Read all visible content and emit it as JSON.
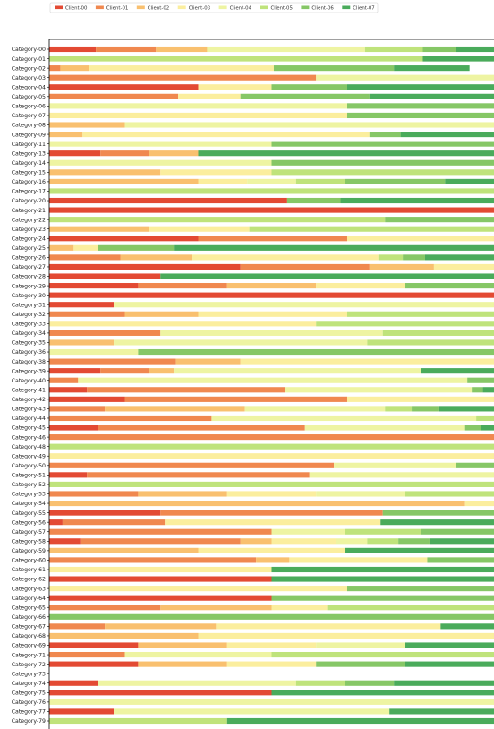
{
  "chart_data": {
    "type": "bar",
    "orientation": "horizontal",
    "stacked": true,
    "xlim": [
      0,
      1
    ],
    "grid": false,
    "legend_position": "top",
    "colors": [
      "#e34a33",
      "#f0884f",
      "#f9c06f",
      "#fbee9e",
      "#eef4a2",
      "#bfe37b",
      "#86c766",
      "#4aab5b"
    ],
    "legend": [
      "Client-00",
      "Client-01",
      "Client-02",
      "Client-03",
      "Client-04",
      "Client-05",
      "Client-06",
      "Client-07"
    ],
    "categories": [
      "Category-00",
      "Category-01",
      "Category-02",
      "Category-03",
      "Category-04",
      "Category-05",
      "Category-06",
      "Category-07",
      "Category-08",
      "Category-09",
      "Category-11",
      "Category-13",
      "Category-14",
      "Category-15",
      "Category-16",
      "Category-17",
      "Category-20",
      "Category-21",
      "Category-22",
      "Category-23",
      "Category-24",
      "Category-25",
      "Category-26",
      "Category-27",
      "Category-28",
      "Category-29",
      "Category-30",
      "Category-31",
      "Category-32",
      "Category-33",
      "Category-34",
      "Category-35",
      "Category-36",
      "Category-38",
      "Category-39",
      "Category-40",
      "Category-41",
      "Category-42",
      "Category-43",
      "Category-44",
      "Category-45",
      "Category-46",
      "Category-48",
      "Category-49",
      "Category-50",
      "Category-51",
      "Category-52",
      "Category-53",
      "Category-54",
      "Category-55",
      "Category-56",
      "Category-57",
      "Category-58",
      "Category-59",
      "Category-60",
      "Category-61",
      "Category-62",
      "Category-63",
      "Category-64",
      "Category-65",
      "Category-66",
      "Category-67",
      "Category-68",
      "Category-69",
      "Category-71",
      "Category-72",
      "Category-73",
      "Category-74",
      "Category-75",
      "Category-76",
      "Category-77",
      "Category-79"
    ],
    "values": [
      [
        0.105,
        0.135,
        0.115,
        0.0,
        0.355,
        0.13,
        0.075,
        0.085
      ],
      [
        0.0,
        0.0,
        0.0,
        0.0,
        0.0,
        0.84,
        0.0,
        0.16
      ],
      [
        0.0,
        0.025,
        0.065,
        0.415,
        0.0,
        0.0,
        0.27,
        0.17
      ],
      [
        0.0,
        0.6,
        0.0,
        0.0,
        0.4,
        0.0,
        0.0,
        0.0
      ],
      [
        0.335,
        0.0,
        0.0,
        0.165,
        0.0,
        0.0,
        0.17,
        0.33
      ],
      [
        0.0,
        0.29,
        0.0,
        0.14,
        0.0,
        0.0,
        0.29,
        0.28
      ],
      [
        0.0,
        0.0,
        0.0,
        0.0,
        0.67,
        0.0,
        0.33,
        0.0
      ],
      [
        0.0,
        0.0,
        0.0,
        0.67,
        0.0,
        0.0,
        0.33,
        0.0
      ],
      [
        0.0,
        0.0,
        0.17,
        0.0,
        0.83,
        0.0,
        0.0,
        0.0
      ],
      [
        0.0,
        0.0,
        0.075,
        0.645,
        0.0,
        0.0,
        0.07,
        0.21
      ],
      [
        0.0,
        0.0,
        0.0,
        0.0,
        0.5,
        0.0,
        0.5,
        0.0
      ],
      [
        0.115,
        0.11,
        0.11,
        0.0,
        0.0,
        0.0,
        0.0,
        0.665
      ],
      [
        0.0,
        0.0,
        0.0,
        0.0,
        0.5,
        0.0,
        0.5,
        0.0
      ],
      [
        0.0,
        0.0,
        0.25,
        0.25,
        0.0,
        0.5,
        0.0,
        0.0
      ],
      [
        0.0,
        0.0,
        0.335,
        0.11,
        0.11,
        0.11,
        0.225,
        0.11
      ],
      [
        0.0,
        0.0,
        0.0,
        0.0,
        0.0,
        1.0,
        0.0,
        0.0
      ],
      [
        0.535,
        0.0,
        0.0,
        0.0,
        0.0,
        0.0,
        0.12,
        0.345
      ],
      [
        1.0,
        0.0,
        0.0,
        0.0,
        0.0,
        0.0,
        0.0,
        0.0
      ],
      [
        0.0,
        0.0,
        0.0,
        0.0,
        0.0,
        0.755,
        0.245,
        0.0
      ],
      [
        0.0,
        0.0,
        0.225,
        0.225,
        0.0,
        0.55,
        0.0,
        0.0
      ],
      [
        0.335,
        0.335,
        0.0,
        0.33,
        0.0,
        0.0,
        0.0,
        0.0
      ],
      [
        0.0,
        0.0,
        0.055,
        0.055,
        0.0,
        0.0,
        0.17,
        0.72
      ],
      [
        0.0,
        0.16,
        0.16,
        0.42,
        0.0,
        0.055,
        0.05,
        0.155
      ],
      [
        0.43,
        0.29,
        0.145,
        0.135,
        0.0,
        0.0,
        0.0,
        0.0
      ],
      [
        0.25,
        0.0,
        0.0,
        0.0,
        0.0,
        0.0,
        0.0,
        0.75
      ],
      [
        0.2,
        0.2,
        0.2,
        0.2,
        0.0,
        0.0,
        0.2,
        0.2
      ],
      [
        1.0,
        0.0,
        0.0,
        0.0,
        0.0,
        0.0,
        0.0,
        0.0
      ],
      [
        0.145,
        0.0,
        0.0,
        0.0,
        0.855,
        0.0,
        0.0,
        0.0
      ],
      [
        0.0,
        0.17,
        0.165,
        0.335,
        0.0,
        0.33,
        0.0,
        0.0
      ],
      [
        0.0,
        0.0,
        0.0,
        0.6,
        0.0,
        0.4,
        0.0,
        0.0
      ],
      [
        0.0,
        0.25,
        0.0,
        0.0,
        0.5,
        0.25,
        0.0,
        0.0
      ],
      [
        0.0,
        0.0,
        0.145,
        0.0,
        0.57,
        0.285,
        0.0,
        0.0
      ],
      [
        0.0,
        0.0,
        0.0,
        0.0,
        0.2,
        0.0,
        0.8,
        0.0
      ],
      [
        0.0,
        0.285,
        0.145,
        0.57,
        0.0,
        0.0,
        0.0,
        0.0
      ],
      [
        0.115,
        0.11,
        0.055,
        0.0,
        0.555,
        0.0,
        0.0,
        0.165
      ],
      [
        0.0,
        0.065,
        0.0,
        0.0,
        0.875,
        0.0,
        0.06,
        0.0
      ],
      [
        0.085,
        0.445,
        0.0,
        0.0,
        0.42,
        0.0,
        0.025,
        0.025
      ],
      [
        0.17,
        0.5,
        0.0,
        0.33,
        0.0,
        0.0,
        0.0,
        0.0
      ],
      [
        0.0,
        0.125,
        0.315,
        0.0,
        0.315,
        0.06,
        0.06,
        0.125
      ],
      [
        0.0,
        0.365,
        0.0,
        0.0,
        0.595,
        0.04,
        0.0,
        0.0
      ],
      [
        0.11,
        0.465,
        0.0,
        0.0,
        0.36,
        0.0,
        0.035,
        0.03
      ],
      [
        0.0,
        1.0,
        0.0,
        0.0,
        0.0,
        0.0,
        0.0,
        0.0
      ],
      [
        0.0,
        0.0,
        0.0,
        0.0,
        0.0,
        1.0,
        0.0,
        0.0
      ],
      [
        0.0,
        0.0,
        0.0,
        1.0,
        0.0,
        0.0,
        0.0,
        0.0
      ],
      [
        0.0,
        0.64,
        0.0,
        0.0,
        0.275,
        0.0,
        0.085,
        0.0
      ],
      [
        0.085,
        0.5,
        0.0,
        0.0,
        0.415,
        0.0,
        0.0,
        0.0
      ],
      [
        0.0,
        0.0,
        0.0,
        0.0,
        0.0,
        1.0,
        0.0,
        0.0
      ],
      [
        0.0,
        0.2,
        0.2,
        0.2,
        0.2,
        0.2,
        0.0,
        0.0
      ],
      [
        0.0,
        0.0,
        0.935,
        0.065,
        0.0,
        0.0,
        0.0,
        0.0
      ],
      [
        0.25,
        0.5,
        0.0,
        0.0,
        0.0,
        0.0,
        0.25,
        0.0
      ],
      [
        0.03,
        0.23,
        0.0,
        0.485,
        0.0,
        0.0,
        0.0,
        0.255
      ],
      [
        0.0,
        0.5,
        0.0,
        0.0,
        0.165,
        0.17,
        0.165,
        0.0
      ],
      [
        0.07,
        0.36,
        0.07,
        0.145,
        0.07,
        0.07,
        0.07,
        0.145
      ],
      [
        0.0,
        0.0,
        0.335,
        0.33,
        0.0,
        0.0,
        0.0,
        0.335
      ],
      [
        0.0,
        0.465,
        0.075,
        0.31,
        0.0,
        0.0,
        0.15,
        0.0
      ],
      [
        0.0,
        0.0,
        0.0,
        0.5,
        0.0,
        0.0,
        0.0,
        0.5
      ],
      [
        0.5,
        0.0,
        0.0,
        0.0,
        0.0,
        0.0,
        0.0,
        0.5
      ],
      [
        0.0,
        0.0,
        0.0,
        0.67,
        0.0,
        0.0,
        0.33,
        0.0
      ],
      [
        0.5,
        0.0,
        0.0,
        0.0,
        0.0,
        0.0,
        0.5,
        0.0
      ],
      [
        0.0,
        0.25,
        0.25,
        0.125,
        0.0,
        0.375,
        0.0,
        0.0
      ],
      [
        0.0,
        0.0,
        0.0,
        0.0,
        0.0,
        0.0,
        1.0,
        0.0
      ],
      [
        0.0,
        0.125,
        0.25,
        0.505,
        0.0,
        0.0,
        0.0,
        0.12
      ],
      [
        0.0,
        0.0,
        0.335,
        0.665,
        0.0,
        0.0,
        0.0,
        0.0
      ],
      [
        0.2,
        0.0,
        0.2,
        0.2,
        0.2,
        0.0,
        0.0,
        0.2
      ],
      [
        0.0,
        0.17,
        0.0,
        0.0,
        0.33,
        0.5,
        0.0,
        0.0
      ],
      [
        0.2,
        0.0,
        0.2,
        0.2,
        0.0,
        0.0,
        0.2,
        0.2
      ],
      [
        0.0,
        0.0,
        0.0,
        0.0,
        0.0,
        0.0,
        0.0,
        0.0
      ],
      [
        0.11,
        0.0,
        0.0,
        0.0,
        0.445,
        0.11,
        0.11,
        0.225
      ],
      [
        0.5,
        0.0,
        0.0,
        0.0,
        0.0,
        0.0,
        0.0,
        0.5
      ],
      [
        0.0,
        0.0,
        0.0,
        0.0,
        1.0,
        0.0,
        0.0,
        0.0
      ],
      [
        0.145,
        0.0,
        0.0,
        0.0,
        0.62,
        0.0,
        0.0,
        0.235
      ],
      [
        0.0,
        0.0,
        0.0,
        0.0,
        0.0,
        0.4,
        0.0,
        0.6
      ]
    ]
  }
}
